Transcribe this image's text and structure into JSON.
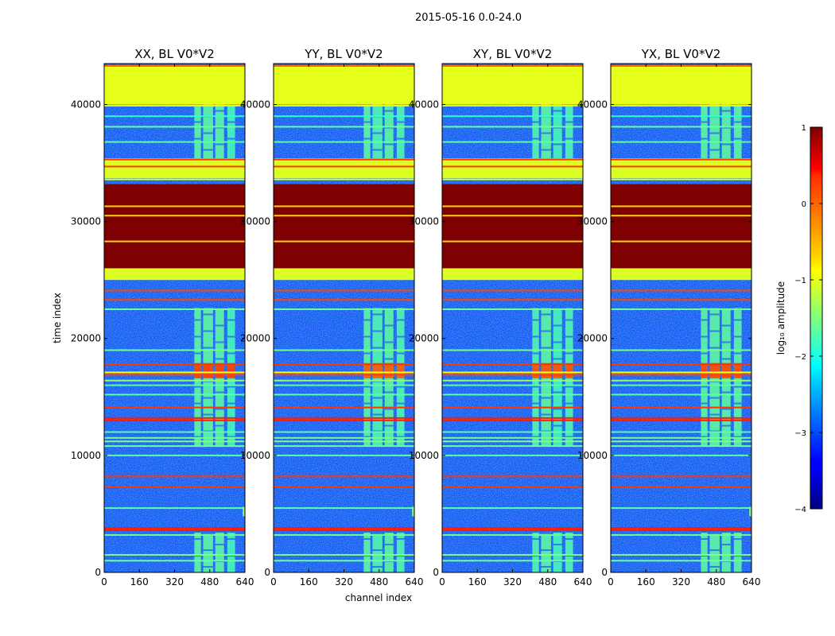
{
  "suptitle": "2015-05-16 0.0-24.0",
  "chart_data": {
    "type": "heatmap",
    "panels": [
      {
        "title": "XX, BL V0*V2",
        "hot_strength": 1.0,
        "comb": [
          1,
          1,
          1,
          0.8
        ],
        "wisp": true
      },
      {
        "title": "YY, BL V0*V2",
        "hot_strength": 0.7,
        "comb": [
          1,
          0.9,
          1,
          0.9
        ],
        "wisp": true
      },
      {
        "title": "XY, BL V0*V2",
        "hot_strength": 0.8,
        "comb": [
          0.9,
          1,
          0.8,
          0.9
        ],
        "wisp": false
      },
      {
        "title": "YX, BL V0*V2",
        "hot_strength": 0.9,
        "comb": [
          1,
          1,
          1,
          1
        ],
        "wisp": true
      }
    ],
    "x": {
      "label": "channel index",
      "lim": [
        0,
        640
      ],
      "ticks": [
        0,
        160,
        320,
        480,
        640
      ]
    },
    "y": {
      "label": "time index",
      "lim": [
        0,
        43500
      ],
      "ticks": [
        0,
        10000,
        20000,
        30000,
        40000
      ]
    },
    "colorbar": {
      "label": "log₁₀ amplitude",
      "lim": [
        -4,
        1
      ],
      "ticks": [
        1,
        0,
        -1,
        -2,
        -3,
        -4
      ]
    },
    "colormap": "jet",
    "bands": [
      {
        "t0": 40000,
        "t1": 43300,
        "value": -1.0
      },
      {
        "t0": 33700,
        "t1": 35400,
        "value": -1.05
      },
      {
        "t0": 26000,
        "t1": 33200,
        "value": 1.0
      },
      {
        "t0": 25000,
        "t1": 26000,
        "value": -1.05
      }
    ],
    "lines": [
      {
        "t": 43300,
        "value": 0.0
      },
      {
        "t": 39900,
        "value": -1.0
      },
      {
        "t": 39000,
        "value": -1.9
      },
      {
        "t": 38100,
        "value": -1.6
      },
      {
        "t": 36800,
        "value": -1.7
      },
      {
        "t": 35300,
        "value": 0.3
      },
      {
        "t": 34700,
        "value": 0.3
      },
      {
        "t": 33600,
        "value": -1.0
      },
      {
        "t": 31300,
        "value": -0.7
      },
      {
        "t": 30500,
        "value": -0.7
      },
      {
        "t": 28300,
        "value": -0.7
      },
      {
        "t": 24100,
        "value": 0.2
      },
      {
        "t": 23300,
        "value": 0.2
      },
      {
        "t": 22500,
        "value": -1.6
      },
      {
        "t": 19000,
        "value": -1.6
      },
      {
        "t": 17800,
        "value": 0.3
      },
      {
        "t": 17100,
        "value": -0.9
      },
      {
        "t": 16900,
        "value": 0.2
      },
      {
        "t": 16400,
        "value": -1.4
      },
      {
        "t": 16000,
        "value": -1.7
      },
      {
        "t": 15200,
        "value": -1.7
      },
      {
        "t": 14100,
        "value": 0.3
      },
      {
        "t": 13200,
        "value": 0.4
      },
      {
        "t": 13000,
        "value": 0.4
      },
      {
        "t": 12000,
        "value": -1.7
      },
      {
        "t": 11500,
        "value": -1.6
      },
      {
        "t": 11200,
        "value": -1.5
      },
      {
        "t": 10800,
        "value": -1.6
      },
      {
        "t": 10000,
        "value": -1.7
      },
      {
        "t": 8200,
        "value": 0.3
      },
      {
        "t": 7300,
        "value": 0.3
      },
      {
        "t": 5500,
        "value": -1.7
      },
      {
        "t": 3800,
        "value": 0.4
      },
      {
        "t": 3600,
        "value": 0.4
      },
      {
        "t": 3200,
        "value": -1.6
      },
      {
        "t": 1500,
        "value": -1.5
      },
      {
        "t": 1000,
        "value": -1.6
      }
    ],
    "comb": {
      "channels": [
        [
          410,
          440
        ],
        [
          450,
          495
        ],
        [
          505,
          545
        ],
        [
          560,
          595
        ]
      ],
      "ranges": [
        {
          "t0": 35400,
          "t1": 40000
        },
        {
          "t0": 10800,
          "t1": 22600
        },
        {
          "t0": 0,
          "t1": 3400
        }
      ],
      "hot": {
        "t0": 16600,
        "t1": 17900
      }
    }
  }
}
